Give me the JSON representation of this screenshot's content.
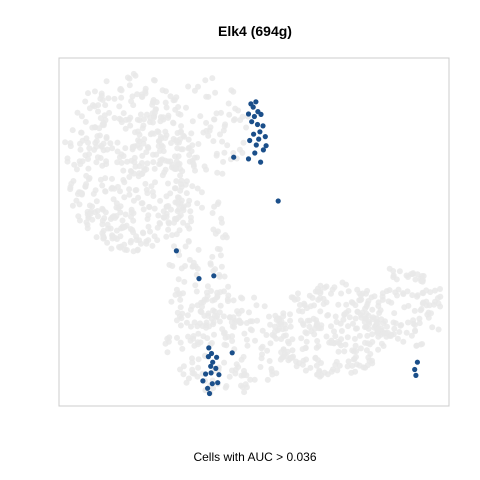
{
  "chart_data": {
    "type": "scatter",
    "title": "Elk4 (694g)",
    "caption": "Cells with AUC > 0.036",
    "xlabel": "",
    "ylabel": "",
    "xlim": [
      0,
      100
    ],
    "ylim": [
      0,
      100
    ],
    "grid": false,
    "axes_ticks": false,
    "colors": {
      "background_cells": "#e9e9e9",
      "highlighted_cells": "#1b4f8a",
      "panel_border": "#cccccc"
    },
    "background_regions": [
      {
        "name": "upper-left lobe",
        "cx": 18,
        "cy": 70,
        "rx": 17,
        "ry": 26,
        "count": 430
      },
      {
        "name": "upper-middle lobe",
        "cx": 36,
        "cy": 80,
        "rx": 14,
        "ry": 15,
        "count": 90
      },
      {
        "name": "vertical stem",
        "cx": 36,
        "cy": 40,
        "rx": 8,
        "ry": 24,
        "count": 110
      },
      {
        "name": "lower-middle cluster",
        "cx": 43,
        "cy": 18,
        "rx": 16,
        "ry": 15,
        "count": 170
      },
      {
        "name": "lower-right arm",
        "cx": 70,
        "cy": 22,
        "rx": 15,
        "ry": 14,
        "count": 220
      },
      {
        "name": "far-right cluster",
        "cx": 88,
        "cy": 28,
        "rx": 11,
        "ry": 12,
        "count": 120
      }
    ],
    "series": [
      {
        "points": [
          [
            49.2,
            86.8
          ],
          [
            50.5,
            87.4
          ],
          [
            49.8,
            85.9
          ],
          [
            51.0,
            84.6
          ],
          [
            48.6,
            83.9
          ],
          [
            50.1,
            83.2
          ],
          [
            51.8,
            83.8
          ],
          [
            49.4,
            81.7
          ],
          [
            50.9,
            80.9
          ],
          [
            52.3,
            80.5
          ],
          [
            51.5,
            78.8
          ],
          [
            49.9,
            78.1
          ],
          [
            52.9,
            77.4
          ],
          [
            51.2,
            76.7
          ],
          [
            48.9,
            76.3
          ],
          [
            50.6,
            75.0
          ],
          [
            53.1,
            74.8
          ],
          [
            52.4,
            73.6
          ],
          [
            50.2,
            72.7
          ],
          [
            44.8,
            71.5
          ],
          [
            48.6,
            71.0
          ],
          [
            51.7,
            70.1
          ],
          [
            56.2,
            58.9
          ],
          [
            30.1,
            44.6
          ],
          [
            39.7,
            37.4
          ],
          [
            35.9,
            36.6
          ],
          [
            38.4,
            16.7
          ],
          [
            39.1,
            15.1
          ],
          [
            38.3,
            14.2
          ],
          [
            40.4,
            14.0
          ],
          [
            44.4,
            15.3
          ],
          [
            39.4,
            12.6
          ],
          [
            38.9,
            11.4
          ],
          [
            40.2,
            10.8
          ],
          [
            39.0,
            9.5
          ],
          [
            37.6,
            9.2
          ],
          [
            41.0,
            9.0
          ],
          [
            36.9,
            7.2
          ],
          [
            39.3,
            6.4
          ],
          [
            40.7,
            6.7
          ],
          [
            38.1,
            5.1
          ],
          [
            38.6,
            3.6
          ],
          [
            91.9,
            12.6
          ],
          [
            91.2,
            10.5
          ],
          [
            91.5,
            8.8
          ]
        ]
      }
    ]
  }
}
